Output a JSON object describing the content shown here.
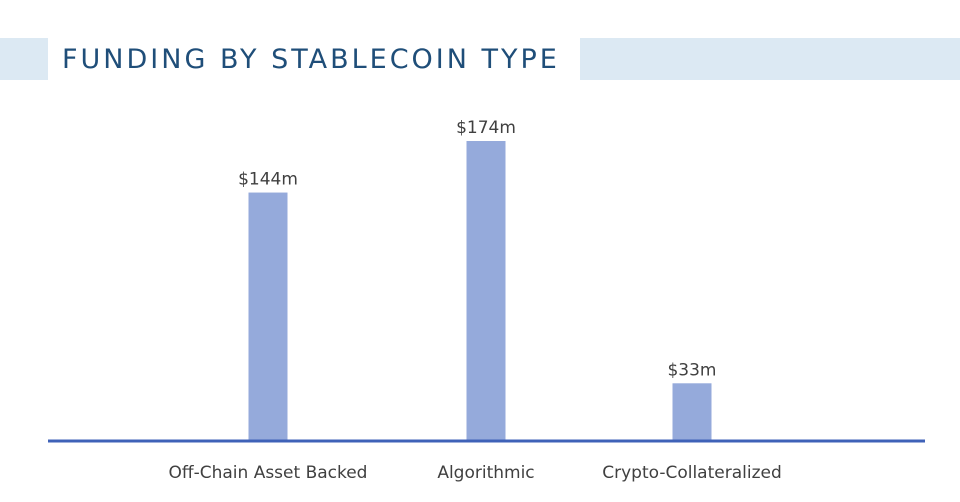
{
  "chart_data": {
    "type": "bar",
    "title": "FUNDING BY STABLECOIN TYPE",
    "categories": [
      "Off-Chain Asset Backed",
      "Algorithmic",
      "Crypto-Collateralized"
    ],
    "values": [
      144,
      174,
      33
    ],
    "value_labels": [
      "$144m",
      "$174m",
      "$33m"
    ],
    "unit": "$m",
    "xlabel": "",
    "ylabel": "",
    "ylim": [
      0,
      174
    ],
    "grid": false,
    "legend": "none",
    "colors": {
      "bar": "#95aadb",
      "axis": "#3f62b8",
      "title": "#1f4e79",
      "band": "#dce9f3",
      "label_text": "#404040"
    }
  }
}
